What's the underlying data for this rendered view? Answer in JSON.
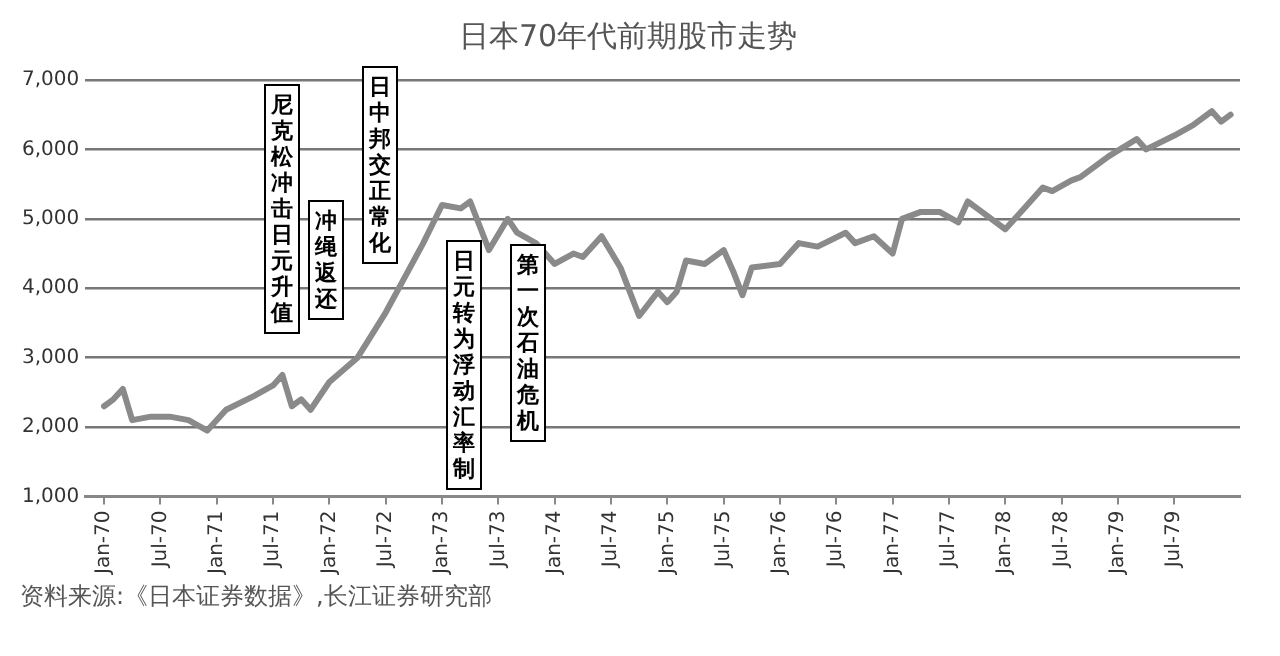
{
  "chart_data": {
    "type": "line",
    "title": "日本70年代前期股市走势",
    "x": [
      "1970-01",
      "1970-02",
      "1970-03",
      "1970-04",
      "1970-06",
      "1970-08",
      "1970-10",
      "1970-12",
      "1971-02",
      "1971-05",
      "1971-07",
      "1971-08",
      "1971-09",
      "1971-10",
      "1971-11",
      "1972-01",
      "1972-04",
      "1972-07",
      "1972-09",
      "1972-11",
      "1973-01",
      "1973-03",
      "1973-04",
      "1973-05",
      "1973-06",
      "1973-08",
      "1973-09",
      "1973-11",
      "1974-01",
      "1974-03",
      "1974-04",
      "1974-06",
      "1974-08",
      "1974-10",
      "1974-12",
      "1975-01",
      "1975-02",
      "1975-03",
      "1975-05",
      "1975-07",
      "1975-08",
      "1975-09",
      "1975-10",
      "1976-01",
      "1976-03",
      "1976-05",
      "1976-08",
      "1976-09",
      "1976-11",
      "1977-01",
      "1977-02",
      "1977-04",
      "1977-06",
      "1977-08",
      "1977-09",
      "1977-10",
      "1978-01",
      "1978-03",
      "1978-05",
      "1978-06",
      "1978-08",
      "1978-09",
      "1978-12",
      "1979-03",
      "1979-04",
      "1979-07",
      "1979-09",
      "1979-11",
      "1979-12",
      "1980-01"
    ],
    "series": [
      {
        "color": "#8a8a8a",
        "values": [
          2300,
          2400,
          2550,
          2100,
          2150,
          2150,
          2100,
          1950,
          2250,
          2450,
          2600,
          2750,
          2300,
          2400,
          2250,
          2650,
          3000,
          3650,
          4150,
          4650,
          5200,
          5150,
          5250,
          4900,
          4550,
          5000,
          4800,
          4650,
          4350,
          4500,
          4450,
          4750,
          4300,
          3600,
          3950,
          3800,
          3950,
          4400,
          4350,
          4550,
          4250,
          3900,
          4300,
          4350,
          4650,
          4600,
          4800,
          4650,
          4750,
          4500,
          5000,
          5100,
          5100,
          4950,
          5250,
          5150,
          4850,
          5150,
          5450,
          5400,
          5550,
          5600,
          5900,
          6150,
          6000,
          6200,
          6350,
          6550,
          6400,
          6500
        ]
      }
    ],
    "xlim": [
      "1969-11",
      "1980-02"
    ],
    "xticks": [
      {
        "value": "1970-01",
        "label": "Jan-70"
      },
      {
        "value": "1970-07",
        "label": "Jul-70"
      },
      {
        "value": "1971-01",
        "label": "Jan-71"
      },
      {
        "value": "1971-07",
        "label": "Jul-71"
      },
      {
        "value": "1972-01",
        "label": "Jan-72"
      },
      {
        "value": "1972-07",
        "label": "Jul-72"
      },
      {
        "value": "1973-01",
        "label": "Jan-73"
      },
      {
        "value": "1973-07",
        "label": "Jul-73"
      },
      {
        "value": "1974-01",
        "label": "Jan-74"
      },
      {
        "value": "1974-07",
        "label": "Jul-74"
      },
      {
        "value": "1975-01",
        "label": "Jan-75"
      },
      {
        "value": "1975-07",
        "label": "Jul-75"
      },
      {
        "value": "1976-01",
        "label": "Jan-76"
      },
      {
        "value": "1976-07",
        "label": "Jul-76"
      },
      {
        "value": "1977-01",
        "label": "Jan-77"
      },
      {
        "value": "1977-07",
        "label": "Jul-77"
      },
      {
        "value": "1978-01",
        "label": "Jan-78"
      },
      {
        "value": "1978-07",
        "label": "Jul-78"
      },
      {
        "value": "1979-01",
        "label": "Jan-79"
      },
      {
        "value": "1979-07",
        "label": "Jul-79"
      }
    ],
    "ylim": [
      1000,
      7000
    ],
    "yticks": [
      {
        "value": 1000,
        "label": "1,000"
      },
      {
        "value": 2000,
        "label": "2,000"
      },
      {
        "value": 3000,
        "label": "3,000"
      },
      {
        "value": 4000,
        "label": "4,000"
      },
      {
        "value": 5000,
        "label": "5,000"
      },
      {
        "value": 6000,
        "label": "6,000"
      },
      {
        "value": 7000,
        "label": "7,000"
      }
    ],
    "grid": "y",
    "legend": false,
    "marker": "none",
    "line_style": "solid",
    "annotations": [
      "尼克松冲击日元升值",
      "冲绳返还",
      "日中邦交正常化",
      "日元转为浮动汇率制",
      "第一次石油危机",
      "资料来源:《日本证券数据》,长江证券研究部"
    ]
  }
}
